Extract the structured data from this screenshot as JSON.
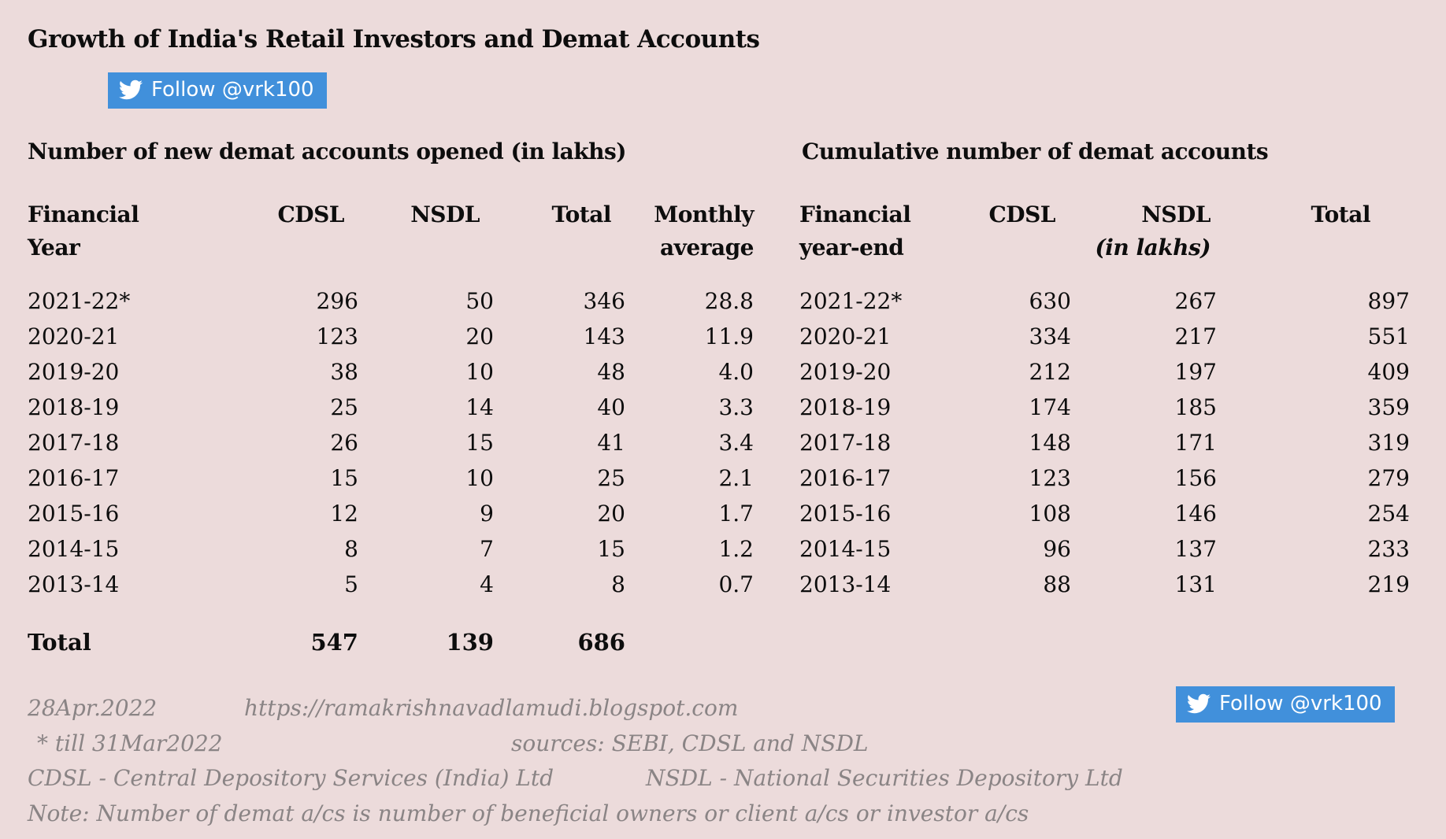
{
  "title": "Growth of India's Retail Investors and Demat Accounts",
  "follow_button": {
    "label": "Follow @vrk100"
  },
  "colors": {
    "background": "#ECDBDB",
    "button_blue": "#4190DB",
    "footer_gray": "#8A8485",
    "text": "#0D0D0D"
  },
  "left_table": {
    "title": "Number of new demat accounts opened (in lakhs)",
    "headers": [
      [
        "Financial",
        "Year"
      ],
      [
        "CDSL",
        ""
      ],
      [
        "NSDL",
        ""
      ],
      [
        "Total",
        ""
      ],
      [
        "Monthly",
        "average"
      ]
    ],
    "rows": [
      [
        "2021-22*",
        "296",
        "50",
        "346",
        "28.8"
      ],
      [
        "2020-21",
        "123",
        "20",
        "143",
        "11.9"
      ],
      [
        "2019-20",
        "38",
        "10",
        "48",
        "4.0"
      ],
      [
        "2018-19",
        "25",
        "14",
        "40",
        "3.3"
      ],
      [
        "2017-18",
        "26",
        "15",
        "41",
        "3.4"
      ],
      [
        "2016-17",
        "15",
        "10",
        "25",
        "2.1"
      ],
      [
        "2015-16",
        "12",
        "9",
        "20",
        "1.7"
      ],
      [
        "2014-15",
        "8",
        "7",
        "15",
        "1.2"
      ],
      [
        "2013-14",
        "5",
        "4",
        "8",
        "0.7"
      ]
    ],
    "total_row": [
      "Total",
      "547",
      "139",
      "686",
      ""
    ]
  },
  "right_table": {
    "title": "Cumulative number of demat accounts",
    "headers": [
      [
        "Financial",
        "year-end"
      ],
      [
        "CDSL",
        ""
      ],
      [
        "NSDL",
        "(in lakhs)"
      ],
      [
        "Total",
        ""
      ]
    ],
    "rows": [
      [
        "2021-22*",
        "630",
        "267",
        "897"
      ],
      [
        "2020-21",
        "334",
        "217",
        "551"
      ],
      [
        "2019-20",
        "212",
        "197",
        "409"
      ],
      [
        "2018-19",
        "174",
        "185",
        "359"
      ],
      [
        "2017-18",
        "148",
        "171",
        "319"
      ],
      [
        "2016-17",
        "123",
        "156",
        "279"
      ],
      [
        "2015-16",
        "108",
        "146",
        "254"
      ],
      [
        "2014-15",
        "96",
        "137",
        "233"
      ],
      [
        "2013-14",
        "88",
        "131",
        "219"
      ]
    ]
  },
  "footer": {
    "date": "28Apr.2022",
    "url": "https://ramakrishnavadlamudi.blogspot.com",
    "asterisk_note": "* till 31Mar2022",
    "sources": "sources: SEBI, CDSL and NSDL",
    "cdsl_definition": "CDSL - Central Depository Services (India) Ltd",
    "nsdl_definition": "NSDL - National Securities Depository Ltd",
    "note": "Note: Number of demat a/cs is number of beneficial owners or client a/cs or investor a/cs"
  }
}
